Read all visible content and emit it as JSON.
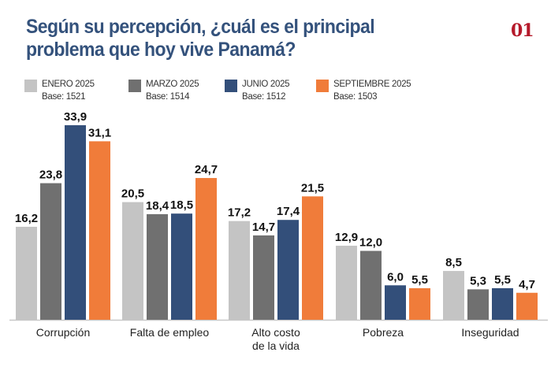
{
  "header": {
    "title": "Según su percepción, ¿cuál es el principal problema que hoy vive Panamá?",
    "figure_number": "01"
  },
  "chart_data": {
    "type": "bar",
    "title": "Según su percepción, ¿cuál es el principal problema que hoy vive Panamá?",
    "xlabel": "",
    "ylabel": "",
    "ylim": [
      0,
      35
    ],
    "grid": false,
    "legend_position": "top-left",
    "categories": [
      "Corrupción",
      "Falta de empleo",
      "Alto costo de la vida",
      "Pobreza",
      "Inseguridad"
    ],
    "category_lines": [
      [
        "Corrupción"
      ],
      [
        "Falta de empleo"
      ],
      [
        "Alto costo",
        "de la vida"
      ],
      [
        "Pobreza"
      ],
      [
        "Inseguridad"
      ]
    ],
    "series": [
      {
        "name": "ENERO 2025",
        "base": "Base: 1521",
        "color": "#c4c4c4",
        "values": [
          16.2,
          20.5,
          17.2,
          12.9,
          8.5
        ]
      },
      {
        "name": "MARZO 2025",
        "base": "Base: 1514",
        "color": "#707070",
        "values": [
          23.8,
          18.4,
          14.7,
          12.0,
          5.3
        ]
      },
      {
        "name": "JUNIO 2025",
        "base": "Base: 1512",
        "color": "#334f7a",
        "values": [
          33.9,
          18.5,
          17.4,
          6.0,
          5.5
        ]
      },
      {
        "name": "SEPTIEMBRE 2025",
        "base": "Base: 1503",
        "color": "#f07c3a",
        "values": [
          31.1,
          24.7,
          21.5,
          5.5,
          4.7
        ]
      }
    ],
    "value_format": "comma-decimal"
  }
}
